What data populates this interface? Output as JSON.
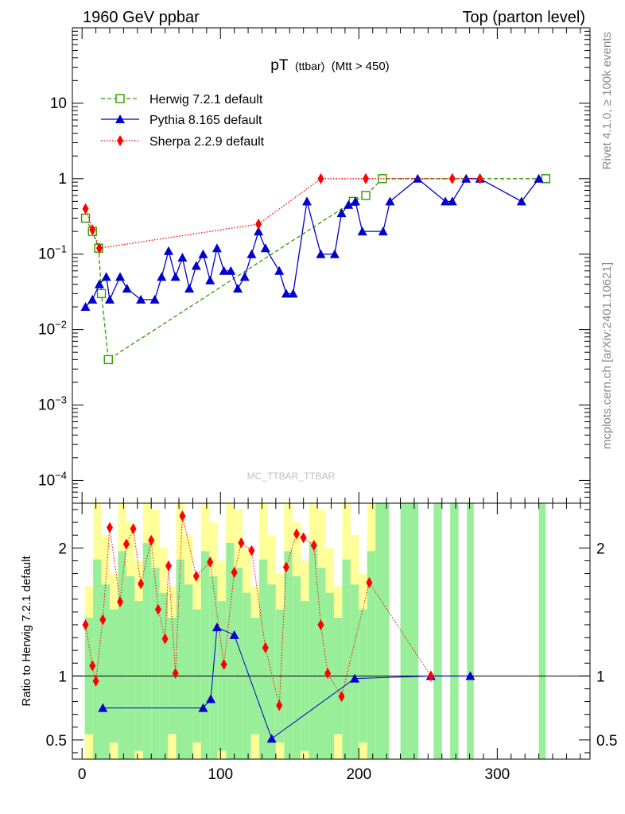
{
  "header": {
    "left": "1960 GeV ppbar",
    "right": "Top (parton level)"
  },
  "side": {
    "rivet": "Rivet 4.1.0, ≥ 100k events",
    "mcplots": "mcplots.cern.ch [arXiv:2401.10621]"
  },
  "watermark": "MC_TTBAR_TTBAR",
  "chart_data": [
    {
      "type": "line",
      "title": "pT",
      "title_small": "(ttbar)",
      "title_suffix": "(Mtt > 450)",
      "yscale": "log",
      "xlim": [
        -7,
        367
      ],
      "ylim": [
        5e-05,
        100
      ],
      "yticklabels": [
        {
          "value": 10,
          "text": "10"
        },
        {
          "value": 1,
          "text": "1"
        },
        {
          "value": 0.1,
          "base": "10",
          "exp": "−1"
        },
        {
          "value": 0.01,
          "base": "10",
          "exp": "−2"
        },
        {
          "value": 0.001,
          "base": "10",
          "exp": "−3"
        },
        {
          "value": 0.0001,
          "base": "10",
          "exp": "−4"
        }
      ],
      "legend": {
        "position": "top-left",
        "entries": [
          "Herwig 7.2.1 default",
          "Pythia 8.165 default",
          "Sherpa 2.2.9 default"
        ]
      },
      "series": [
        {
          "name": "Herwig 7.2.1 default",
          "color": "#339900",
          "marker": "open-square",
          "linestyle": "dashed",
          "points": [
            {
              "x": 2.5,
              "y": 0.3
            },
            {
              "x": 7.5,
              "y": 0.2
            },
            {
              "x": 12,
              "y": 0.12
            },
            {
              "x": 14,
              "y": 0.03
            },
            {
              "x": 19,
              "y": 0.004
            },
            {
              "x": 196,
              "y": 0.5
            },
            {
              "x": 205,
              "y": 0.6
            },
            {
              "x": 217,
              "y": 1.0
            },
            {
              "x": 335,
              "y": 1.0
            }
          ]
        },
        {
          "name": "Pythia 8.165 default",
          "color": "#0000cc",
          "marker": "triangle",
          "linestyle": "solid",
          "points": [
            {
              "x": 2.5,
              "y": 0.02
            },
            {
              "x": 7.5,
              "y": 0.025
            },
            {
              "x": 12.5,
              "y": 0.04
            },
            {
              "x": 17.5,
              "y": 0.05
            },
            {
              "x": 20,
              "y": 0.025
            },
            {
              "x": 27.5,
              "y": 0.05
            },
            {
              "x": 32.5,
              "y": 0.035
            },
            {
              "x": 42.5,
              "y": 0.025
            },
            {
              "x": 52.5,
              "y": 0.025
            },
            {
              "x": 57.5,
              "y": 0.05
            },
            {
              "x": 62.5,
              "y": 0.11
            },
            {
              "x": 67.5,
              "y": 0.05
            },
            {
              "x": 72.5,
              "y": 0.09
            },
            {
              "x": 77.5,
              "y": 0.035
            },
            {
              "x": 82.5,
              "y": 0.07
            },
            {
              "x": 87.5,
              "y": 0.1
            },
            {
              "x": 92.5,
              "y": 0.045
            },
            {
              "x": 97.5,
              "y": 0.12
            },
            {
              "x": 102.5,
              "y": 0.06
            },
            {
              "x": 107.5,
              "y": 0.06
            },
            {
              "x": 112.5,
              "y": 0.035
            },
            {
              "x": 117.5,
              "y": 0.05
            },
            {
              "x": 122.5,
              "y": 0.1
            },
            {
              "x": 127.5,
              "y": 0.2
            },
            {
              "x": 132.5,
              "y": 0.12
            },
            {
              "x": 142.5,
              "y": 0.06
            },
            {
              "x": 147.5,
              "y": 0.03
            },
            {
              "x": 152.5,
              "y": 0.03
            },
            {
              "x": 162.5,
              "y": 0.5
            },
            {
              "x": 172.5,
              "y": 0.1
            },
            {
              "x": 182.5,
              "y": 0.1
            },
            {
              "x": 187.5,
              "y": 0.35
            },
            {
              "x": 192.5,
              "y": 0.45
            },
            {
              "x": 197.5,
              "y": 0.5
            },
            {
              "x": 202.5,
              "y": 0.2
            },
            {
              "x": 217.5,
              "y": 0.2
            },
            {
              "x": 222.5,
              "y": 0.5
            },
            {
              "x": 242.5,
              "y": 1.0
            },
            {
              "x": 262.5,
              "y": 0.5
            },
            {
              "x": 267.5,
              "y": 0.5
            },
            {
              "x": 277.5,
              "y": 1.0
            },
            {
              "x": 287.5,
              "y": 1.0
            },
            {
              "x": 317.5,
              "y": 0.5
            },
            {
              "x": 330,
              "y": 1.0
            }
          ]
        },
        {
          "name": "Sherpa 2.2.9 default",
          "color": "#ff0000",
          "marker": "diamond",
          "linestyle": "dotted",
          "points": [
            {
              "x": 2.5,
              "y": 0.4
            },
            {
              "x": 7.5,
              "y": 0.21
            },
            {
              "x": 12.5,
              "y": 0.12
            },
            {
              "x": 127.5,
              "y": 0.25
            },
            {
              "x": 172.5,
              "y": 1.0
            },
            {
              "x": 205,
              "y": 1.0
            },
            {
              "x": 267.5,
              "y": 1.0
            },
            {
              "x": 287.5,
              "y": 1.0
            }
          ]
        }
      ]
    },
    {
      "type": "line",
      "title": "Ratio",
      "ylabel": "Ratio to Herwig 7.2.1 default",
      "xlim": [
        -7,
        367
      ],
      "ylim": [
        0.35,
        2.35
      ],
      "xticklabels": [
        "0",
        "100",
        "200",
        "300"
      ],
      "yticklabels": [
        "0.5",
        "1",
        "2"
      ],
      "reference_line": 1,
      "band_colors": {
        "inner": "#99ee99",
        "outer": "#ffff99"
      },
      "series": [
        {
          "name": "Pythia 8.165 default",
          "color": "#0000cc",
          "marker": "triangle",
          "points": [
            {
              "x": 15,
              "y": 0.75
            },
            {
              "x": 87.5,
              "y": 0.75
            },
            {
              "x": 93,
              "y": 0.82
            },
            {
              "x": 97.5,
              "y": 1.38
            },
            {
              "x": 110,
              "y": 1.32
            },
            {
              "x": 137,
              "y": 0.51
            },
            {
              "x": 197,
              "y": 0.98
            },
            {
              "x": 252,
              "y": 1.0
            },
            {
              "x": 280.5,
              "y": 1.0
            }
          ]
        },
        {
          "name": "Sherpa 2.2.9 default",
          "color": "#ff0000",
          "marker": "diamond",
          "points": [
            {
              "x": 2.5,
              "y": 1.4
            },
            {
              "x": 7.5,
              "y": 1.08
            },
            {
              "x": 10,
              "y": 0.96
            },
            {
              "x": 15,
              "y": 1.44
            },
            {
              "x": 20,
              "y": 2.16
            },
            {
              "x": 27.5,
              "y": 1.58
            },
            {
              "x": 32,
              "y": 2.03
            },
            {
              "x": 37,
              "y": 2.15
            },
            {
              "x": 42.5,
              "y": 1.72
            },
            {
              "x": 50,
              "y": 2.06
            },
            {
              "x": 55,
              "y": 1.52
            },
            {
              "x": 60,
              "y": 1.29
            },
            {
              "x": 62.5,
              "y": 1.86
            },
            {
              "x": 67.5,
              "y": 1.02
            },
            {
              "x": 72.5,
              "y": 2.25
            },
            {
              "x": 82.5,
              "y": 1.78
            },
            {
              "x": 92.5,
              "y": 1.89
            },
            {
              "x": 102.5,
              "y": 1.09
            },
            {
              "x": 110,
              "y": 1.81
            },
            {
              "x": 115,
              "y": 2.04
            },
            {
              "x": 122.5,
              "y": 1.98
            },
            {
              "x": 132.5,
              "y": 1.22
            },
            {
              "x": 142.5,
              "y": 0.77
            },
            {
              "x": 147.5,
              "y": 1.85
            },
            {
              "x": 155,
              "y": 2.11
            },
            {
              "x": 160,
              "y": 2.08
            },
            {
              "x": 167.5,
              "y": 2.02
            },
            {
              "x": 172.5,
              "y": 1.4
            },
            {
              "x": 177.5,
              "y": 1.02
            },
            {
              "x": 187.5,
              "y": 0.84
            },
            {
              "x": 207.5,
              "y": 1.73
            },
            {
              "x": 252,
              "y": 1.0
            }
          ]
        }
      ]
    }
  ]
}
